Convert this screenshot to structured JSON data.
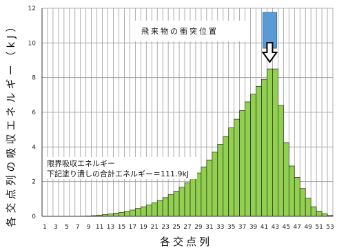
{
  "chart_data": {
    "type": "bar",
    "xlabel": "各交点列",
    "ylabel": "各交点列の吸収エネルギー（kJ）",
    "ylim": [
      0,
      12
    ],
    "yticks": [
      0,
      2,
      4,
      6,
      8,
      10,
      12
    ],
    "grid": true,
    "bar_color": "#92d050",
    "categories": [
      1,
      2,
      3,
      4,
      5,
      6,
      7,
      8,
      9,
      10,
      11,
      12,
      13,
      14,
      15,
      16,
      17,
      18,
      19,
      20,
      21,
      22,
      23,
      24,
      25,
      26,
      27,
      28,
      29,
      30,
      31,
      32,
      33,
      34,
      35,
      36,
      37,
      38,
      39,
      40,
      41,
      42,
      43,
      44,
      45,
      46,
      47,
      48,
      49,
      50,
      51,
      52,
      53
    ],
    "tick_labels": [
      "1",
      "3",
      "5",
      "7",
      "9",
      "11",
      "13",
      "15",
      "17",
      "19",
      "21",
      "23",
      "25",
      "27",
      "29",
      "31",
      "33",
      "35",
      "37",
      "39",
      "41",
      "43",
      "45",
      "47",
      "49",
      "51",
      "53"
    ],
    "values": [
      0,
      0,
      0,
      0,
      0,
      0,
      0,
      0.01,
      0.02,
      0.04,
      0.07,
      0.1,
      0.14,
      0.18,
      0.23,
      0.29,
      0.36,
      0.45,
      0.55,
      0.65,
      0.78,
      0.92,
      1.08,
      1.25,
      1.45,
      1.68,
      1.93,
      2.2,
      2.5,
      2.85,
      3.25,
      3.7,
      4.15,
      4.6,
      5.1,
      5.6,
      6.1,
      6.6,
      7.05,
      7.5,
      7.9,
      8.5,
      8.5,
      6.4,
      4.25,
      2.9,
      2.25,
      1.6,
      1.05,
      0.55,
      0.3,
      0.15,
      0.05
    ],
    "annotations": {
      "note_line1": "限界吸収エネルギー",
      "note_line2": "下記塗り潰しの合計エネルギー＝111.9kJ",
      "impact_label": "飛来物の衝突位置",
      "impact_color": "#5b9bd5",
      "impact_column": 42,
      "impact_arrow": "down-arrow"
    }
  }
}
